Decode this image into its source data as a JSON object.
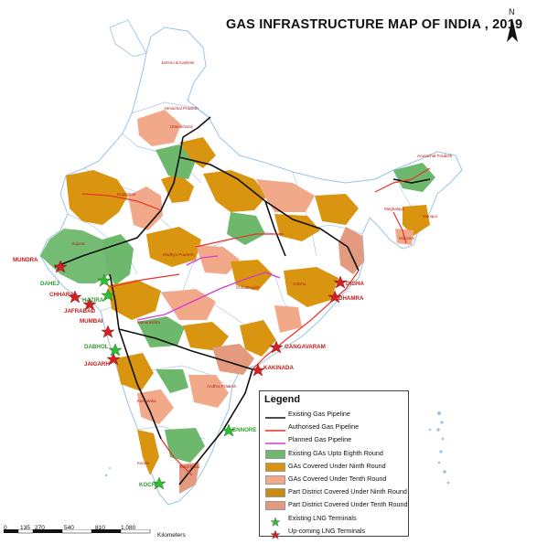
{
  "title": "GAS INFRASTRUCTURE MAP OF INDIA , 2019",
  "north_label": "N",
  "colors": {
    "existing_pipeline": "#111111",
    "authorised_pipeline": "#e8322b",
    "planned_pipeline": "#d43bd4",
    "existing_gas": "#6db86d",
    "ninth_round": "#d9950f",
    "tenth_round": "#f2a98a",
    "part_ninth": "#c98a10",
    "part_tenth": "#e39a7e",
    "existing_lng": "#2dbf2d",
    "upcoming_lng": "#d42020",
    "boundary": "#9bc3e6",
    "land": "#ffffff"
  },
  "legend": {
    "title": "Legend",
    "items": [
      {
        "label": "Existing Gas Pipeline",
        "kind": "line",
        "color": "#111111"
      },
      {
        "label": "Authorised Gas Pipeline",
        "kind": "line",
        "color": "#e8322b"
      },
      {
        "label": "Planned Gas Pipeline",
        "kind": "line",
        "color": "#d43bd4"
      },
      {
        "label": "Existing GAs Upto Eighth Round",
        "kind": "fill",
        "color": "#6db86d"
      },
      {
        "label": "GAs Covered Under Ninth Round",
        "kind": "fill",
        "color": "#d9950f"
      },
      {
        "label": "GAs Covered Under Tenth Round",
        "kind": "fill",
        "color": "#f2a98a"
      },
      {
        "label": "Part District Covered Under Ninth Round",
        "kind": "fill",
        "color": "#c98a10"
      },
      {
        "label": "Part District Covered Under Tenth Round",
        "kind": "fill",
        "color": "#e39a7e"
      },
      {
        "label": "Existing LNG Terminals",
        "kind": "star",
        "color": "#2dbf2d"
      },
      {
        "label": "Up-coming LNG Terminals",
        "kind": "star",
        "color": "#d42020"
      }
    ]
  },
  "scale": {
    "ticks": [
      "0",
      "135",
      "270",
      "540",
      "810",
      "1,080"
    ],
    "unit": "Kilometers"
  },
  "states": {
    "jk": "Jammu & Kashmir",
    "hp": "Himachal Pradesh",
    "uk": "Uttarakhand",
    "raj": "Rajasthan",
    "gj": "Gujarat",
    "mp": "Madhya Pradesh",
    "mh": "Maharashtra",
    "ap": "Andhra Pradesh",
    "ka": "Karnataka",
    "tn": "Tamil Nadu",
    "kl": "Kerala",
    "or": "Odisha",
    "cg": "Chhattisgarh",
    "ar": "Arunachal Pradesh",
    "mz": "Mizoram",
    "mg": "Meghalaya",
    "mn": "Manipur"
  },
  "terminals": {
    "existing": [
      {
        "name": "DAHEJ",
        "color": "#2e9e2e"
      },
      {
        "name": "HAZIRA",
        "color": "#2e9e2e"
      },
      {
        "name": "DABHOL",
        "color": "#2e9e2e"
      },
      {
        "name": "ENNORE",
        "color": "#2e9e2e"
      },
      {
        "name": "KOCHI",
        "color": "#2e9e2e"
      }
    ],
    "upcoming": [
      {
        "name": "MUNDRA",
        "color": "#c41a1a"
      },
      {
        "name": "CHHARA",
        "color": "#c41a1a"
      },
      {
        "name": "JAFRABAD",
        "color": "#c41a1a"
      },
      {
        "name": "MUMBAI",
        "color": "#c41a1a"
      },
      {
        "name": "JAIGARH",
        "color": "#c41a1a"
      },
      {
        "name": "DHAMRA",
        "color": "#c41a1a"
      },
      {
        "name": "DIGHA",
        "color": "#c41a1a"
      },
      {
        "name": "GANGAVARAM",
        "color": "#c41a1a"
      },
      {
        "name": "KAKINADA",
        "color": "#c41a1a"
      }
    ]
  }
}
